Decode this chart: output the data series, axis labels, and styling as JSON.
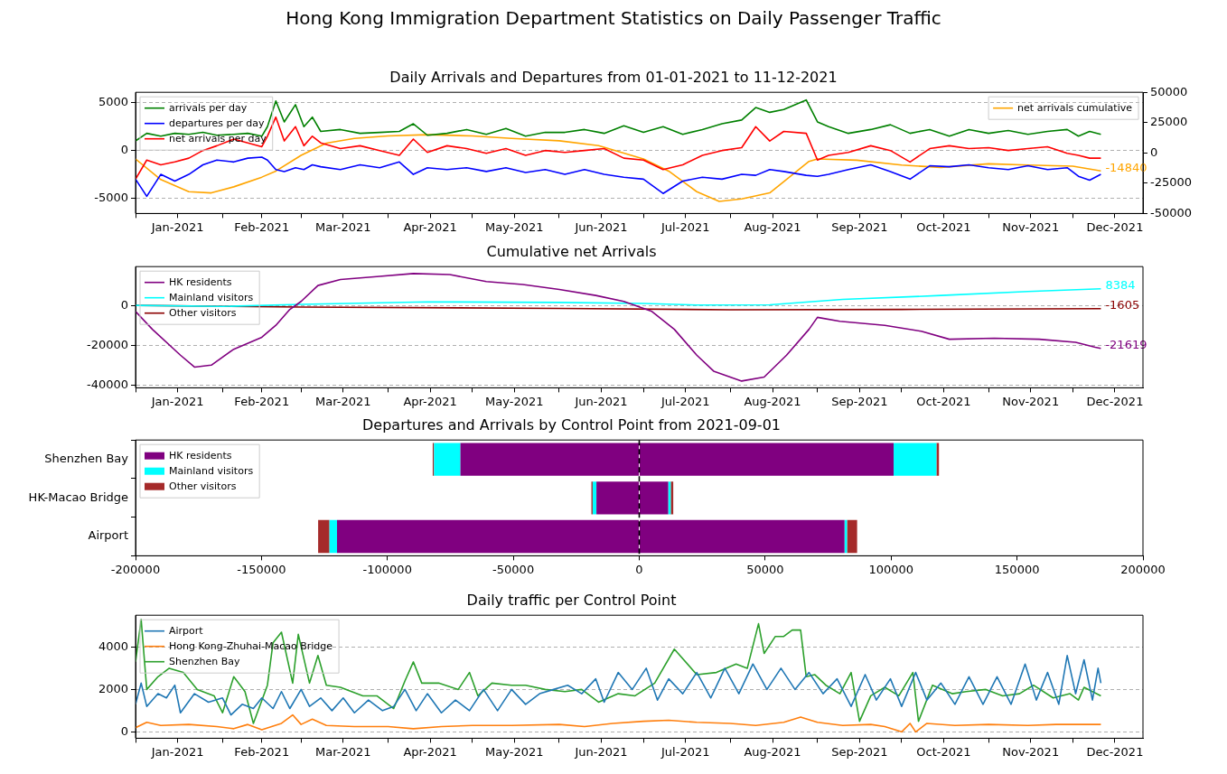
{
  "chart_data": [
    {
      "type": "line",
      "title": "Hong Kong Immigration Department Statistics on Daily Passenger Traffic",
      "subtitle": "Daily Arrivals and Departures from 01-01-2021 to 11-12-2021",
      "x": [
        "2021-01-01",
        "2021-01-05",
        "2021-01-10",
        "2021-01-15",
        "2021-01-20",
        "2021-01-25",
        "2021-01-30",
        "2021-02-05",
        "2021-02-10",
        "2021-02-15",
        "2021-02-17",
        "2021-02-20",
        "2021-02-23",
        "2021-02-27",
        "2021-03-02",
        "2021-03-05",
        "2021-03-08",
        "2021-03-15",
        "2021-03-22",
        "2021-03-29",
        "2021-04-05",
        "2021-04-10",
        "2021-04-15",
        "2021-04-22",
        "2021-04-29",
        "2021-05-06",
        "2021-05-13",
        "2021-05-20",
        "2021-05-27",
        "2021-06-03",
        "2021-06-10",
        "2021-06-17",
        "2021-06-24",
        "2021-07-01",
        "2021-07-08",
        "2021-07-15",
        "2021-07-22",
        "2021-07-29",
        "2021-08-05",
        "2021-08-10",
        "2021-08-15",
        "2021-08-20",
        "2021-08-28",
        "2021-09-01",
        "2021-09-05",
        "2021-09-12",
        "2021-09-20",
        "2021-09-27",
        "2021-10-04",
        "2021-10-11",
        "2021-10-18",
        "2021-10-25",
        "2021-11-01",
        "2021-11-08",
        "2021-11-15",
        "2021-11-22",
        "2021-11-29",
        "2021-12-03",
        "2021-12-07",
        "2021-12-11"
      ],
      "series": [
        {
          "name": "arrivals per day",
          "color": "#008000",
          "values": [
            1000,
            1800,
            1500,
            1800,
            1700,
            1900,
            1600,
            1700,
            1800,
            1500,
            2500,
            5200,
            3000,
            4800,
            2500,
            3500,
            2000,
            2200,
            1800,
            1900,
            2000,
            2800,
            1600,
            1800,
            2200,
            1700,
            2300,
            1500,
            1900,
            1900,
            2200,
            1800,
            2600,
            1900,
            2500,
            1700,
            2200,
            2800,
            3200,
            4500,
            4000,
            4300,
            5300,
            3000,
            2500,
            1800,
            2200,
            2700,
            1800,
            2200,
            1500,
            2200,
            1800,
            2100,
            1700,
            2000,
            2200,
            1500,
            2000,
            1700
          ]
        },
        {
          "name": "departures per day",
          "color": "#0000ff",
          "values": [
            -3000,
            -4800,
            -2500,
            -3200,
            -2500,
            -1500,
            -1000,
            -1200,
            -800,
            -700,
            -1000,
            -2000,
            -2200,
            -1800,
            -2000,
            -1500,
            -1700,
            -2000,
            -1500,
            -1800,
            -1200,
            -2500,
            -1800,
            -2000,
            -1800,
            -2200,
            -1800,
            -2300,
            -2000,
            -2500,
            -2000,
            -2500,
            -2800,
            -3000,
            -4500,
            -3200,
            -2800,
            -3000,
            -2500,
            -2600,
            -2000,
            -2200,
            -2600,
            -2700,
            -2500,
            -2000,
            -1500,
            -2200,
            -3000,
            -1600,
            -1700,
            -1500,
            -1800,
            -2000,
            -1600,
            -2000,
            -1800,
            -2700,
            -3100,
            -2500
          ]
        },
        {
          "name": "net arrivals per day",
          "color": "#ff0000",
          "values": [
            -3000,
            -1000,
            -1500,
            -1200,
            -800,
            0,
            500,
            1200,
            800,
            400,
            1500,
            3500,
            1000,
            2500,
            500,
            1500,
            800,
            200,
            500,
            0,
            -500,
            1200,
            -200,
            500,
            200,
            -300,
            200,
            -500,
            0,
            -200,
            0,
            200,
            -800,
            -1000,
            -2000,
            -1500,
            -500,
            0,
            300,
            2500,
            1000,
            2000,
            1800,
            -1000,
            -500,
            -200,
            500,
            0,
            -1200,
            200,
            500,
            200,
            300,
            0,
            200,
            400,
            -300,
            -500,
            -800,
            -800
          ]
        },
        {
          "name": "net arrivals cumulative",
          "color": "#ffa500",
          "axis": "y2",
          "x": [
            "2021-01-01",
            "2021-01-10",
            "2021-01-20",
            "2021-01-28",
            "2021-02-05",
            "2021-02-15",
            "2021-02-20",
            "2021-03-01",
            "2021-03-10",
            "2021-03-20",
            "2021-04-01",
            "2021-04-15",
            "2021-05-01",
            "2021-05-15",
            "2021-06-01",
            "2021-06-15",
            "2021-07-01",
            "2021-07-10",
            "2021-07-20",
            "2021-07-28",
            "2021-08-05",
            "2021-08-15",
            "2021-08-22",
            "2021-08-29",
            "2021-09-01",
            "2021-09-15",
            "2021-10-01",
            "2021-10-15",
            "2021-11-01",
            "2021-11-15",
            "2021-12-01",
            "2021-12-11"
          ],
          "values": [
            -5000,
            -22000,
            -32000,
            -33000,
            -28000,
            -20000,
            -15000,
            -2000,
            8000,
            12000,
            14000,
            15000,
            14000,
            12000,
            10000,
            6000,
            -5000,
            -15000,
            -32000,
            -40000,
            -38000,
            -33000,
            -20000,
            -7000,
            -5000,
            -6000,
            -10000,
            -12000,
            -9000,
            -10000,
            -11000,
            -14840
          ],
          "value_labels": [
            null,
            null,
            null,
            null,
            null,
            null,
            null,
            null,
            null,
            null,
            null,
            null,
            null,
            null,
            null,
            null,
            null,
            null,
            null,
            null,
            null,
            null,
            null,
            null,
            null,
            null,
            null,
            null,
            null,
            null,
            null,
            "-14840"
          ]
        }
      ],
      "xlim": [
        "2021-01-01",
        "2021-12-26"
      ],
      "xticks": [
        {
          "value": "2021-01-01",
          "label": null
        },
        {
          "value": "2021-01-16",
          "label": "Jan-2021"
        },
        {
          "value": "2021-02-01",
          "label": null
        },
        {
          "value": "2021-02-15",
          "label": "Feb-2021"
        },
        {
          "value": "2021-03-01",
          "label": null
        },
        {
          "value": "2021-03-16",
          "label": "Mar-2021"
        },
        {
          "value": "2021-04-01",
          "label": null
        },
        {
          "value": "2021-04-16",
          "label": "Apr-2021"
        },
        {
          "value": "2021-05-01",
          "label": null
        },
        {
          "value": "2021-05-16",
          "label": "May-2021"
        },
        {
          "value": "2021-06-01",
          "label": null
        },
        {
          "value": "2021-06-16",
          "label": "Jun-2021"
        },
        {
          "value": "2021-07-01",
          "label": null
        },
        {
          "value": "2021-07-16",
          "label": "Jul-2021"
        },
        {
          "value": "2021-08-01",
          "label": null
        },
        {
          "value": "2021-08-16",
          "label": "Aug-2021"
        },
        {
          "value": "2021-09-01",
          "label": null
        },
        {
          "value": "2021-09-16",
          "label": "Sep-2021"
        },
        {
          "value": "2021-10-01",
          "label": null
        },
        {
          "value": "2021-10-16",
          "label": "Oct-2021"
        },
        {
          "value": "2021-11-01",
          "label": null
        },
        {
          "value": "2021-11-16",
          "label": "Nov-2021"
        },
        {
          "value": "2021-12-01",
          "label": null
        },
        {
          "value": "2021-12-16",
          "label": "Dec-2021"
        }
      ],
      "ylim": [
        -6600,
        6100
      ],
      "yticks": [
        -5000,
        0,
        5000
      ],
      "y2lim": [
        -50000,
        50000
      ],
      "y2ticks": [
        -50000,
        -25000,
        0,
        25000,
        50000
      ],
      "grid": "y",
      "legend": "top left"
    },
    {
      "type": "line",
      "title": "Cumulative net Arrivals",
      "series": [
        {
          "name": "HK residents",
          "color": "#800080",
          "x": [
            "2021-01-01",
            "2021-01-07",
            "2021-01-17",
            "2021-01-22",
            "2021-01-28",
            "2021-02-05",
            "2021-02-15",
            "2021-02-20",
            "2021-02-25",
            "2021-03-01",
            "2021-03-07",
            "2021-03-15",
            "2021-03-28",
            "2021-04-10",
            "2021-04-23",
            "2021-05-06",
            "2021-05-19",
            "2021-06-01",
            "2021-06-14",
            "2021-06-24",
            "2021-07-04",
            "2021-07-12",
            "2021-07-20",
            "2021-07-26",
            "2021-08-05",
            "2021-08-13",
            "2021-08-21",
            "2021-08-29",
            "2021-09-01",
            "2021-09-09",
            "2021-09-25",
            "2021-10-08",
            "2021-10-18",
            "2021-11-03",
            "2021-11-19",
            "2021-12-02",
            "2021-12-09",
            "2021-12-11"
          ],
          "values": [
            -3000,
            -12000,
            -25000,
            -31000,
            -30000,
            -22000,
            -16000,
            -10000,
            -2000,
            2000,
            10000,
            13000,
            14500,
            16000,
            15500,
            12000,
            10500,
            8000,
            5000,
            2000,
            -3000,
            -12000,
            -25000,
            -33000,
            -38000,
            -36000,
            -25000,
            -12000,
            -6000,
            -8000,
            -10000,
            -13000,
            -17000,
            -16500,
            -17000,
            -18500,
            -21000,
            -21619
          ],
          "value_labels": [
            null,
            null,
            null,
            null,
            null,
            null,
            null,
            null,
            null,
            null,
            null,
            null,
            null,
            null,
            null,
            null,
            null,
            null,
            null,
            null,
            null,
            null,
            null,
            null,
            null,
            null,
            null,
            null,
            null,
            null,
            null,
            null,
            null,
            null,
            null,
            null,
            null,
            "-21619"
          ]
        },
        {
          "name": "Mainland visitors",
          "color": "#00ffff",
          "x": [
            "2021-01-01",
            "2021-02-01",
            "2021-03-01",
            "2021-04-15",
            "2021-06-01",
            "2021-07-01",
            "2021-07-20",
            "2021-08-15",
            "2021-09-10",
            "2021-10-15",
            "2021-11-15",
            "2021-12-11"
          ],
          "values": [
            0,
            -500,
            500,
            1800,
            1500,
            1000,
            200,
            300,
            3000,
            5000,
            7000,
            8384
          ],
          "value_labels": [
            null,
            null,
            null,
            null,
            null,
            null,
            null,
            null,
            null,
            null,
            null,
            "8384"
          ]
        },
        {
          "name": "Other visitors",
          "color": "#8b0000",
          "x": [
            "2021-01-01",
            "2021-03-01",
            "2021-06-01",
            "2021-08-01",
            "2021-10-01",
            "2021-12-11"
          ],
          "values": [
            0,
            -800,
            -1500,
            -2200,
            -2000,
            -1605
          ],
          "value_labels": [
            null,
            null,
            null,
            null,
            null,
            "-1605"
          ]
        }
      ],
      "xlim": [
        "2021-01-01",
        "2021-12-26"
      ],
      "xticks": [
        {
          "value": "2021-01-01",
          "label": null
        },
        {
          "value": "2021-01-16",
          "label": "Jan-2021"
        },
        {
          "value": "2021-02-01",
          "label": null
        },
        {
          "value": "2021-02-15",
          "label": "Feb-2021"
        },
        {
          "value": "2021-03-01",
          "label": null
        },
        {
          "value": "2021-03-16",
          "label": "Mar-2021"
        },
        {
          "value": "2021-04-01",
          "label": null
        },
        {
          "value": "2021-04-16",
          "label": "Apr-2021"
        },
        {
          "value": "2021-05-01",
          "label": null
        },
        {
          "value": "2021-05-16",
          "label": "May-2021"
        },
        {
          "value": "2021-06-01",
          "label": null
        },
        {
          "value": "2021-06-16",
          "label": "Jun-2021"
        },
        {
          "value": "2021-07-01",
          "label": null
        },
        {
          "value": "2021-07-16",
          "label": "Jul-2021"
        },
        {
          "value": "2021-08-01",
          "label": null
        },
        {
          "value": "2021-08-16",
          "label": "Aug-2021"
        },
        {
          "value": "2021-09-01",
          "label": null
        },
        {
          "value": "2021-09-16",
          "label": "Sep-2021"
        },
        {
          "value": "2021-10-01",
          "label": null
        },
        {
          "value": "2021-10-16",
          "label": "Oct-2021"
        },
        {
          "value": "2021-11-01",
          "label": null
        },
        {
          "value": "2021-11-16",
          "label": "Nov-2021"
        },
        {
          "value": "2021-12-01",
          "label": null
        },
        {
          "value": "2021-12-16",
          "label": "Dec-2021"
        }
      ],
      "ylim": [
        -41400,
        19500
      ],
      "yticks": [
        -40000,
        -20000,
        0
      ],
      "grid": "y",
      "legend": "top left"
    },
    {
      "type": "bar",
      "title": "Departures and Arrivals by Control Point from 2021-09-01",
      "orientation": "horizontal",
      "stacked": true,
      "categories": [
        "Shenzhen Bay",
        "HK-Macao Bridge",
        "Airport"
      ],
      "series": [
        {
          "name": "HK residents",
          "color": "#800080",
          "values": [
            101000,
            11500,
            81500
          ]
        },
        {
          "name": "Mainland visitors",
          "color": "#00ffff",
          "values": [
            17000,
            1000,
            1000
          ]
        },
        {
          "name": "Other visitors",
          "color": "#a52a2a",
          "values": [
            1000,
            1000,
            4000
          ]
        },
        {
          "color": "#800080",
          "values": [
            -71000,
            -17000,
            -120000
          ]
        },
        {
          "color": "#00ffff",
          "values": [
            -10500,
            -1500,
            -3000
          ]
        },
        {
          "color": "#a52a2a",
          "values": [
            -500,
            -500,
            -4500
          ]
        }
      ],
      "xlim": [
        -200000,
        200000
      ],
      "xticks": [
        -200000,
        -150000,
        -100000,
        -50000,
        0,
        50000,
        100000,
        150000,
        200000
      ],
      "ref_lines": [
        {
          "axis": "x",
          "value": 0,
          "color": "#000000",
          "line_style": "dashed"
        }
      ],
      "legend": "top left"
    },
    {
      "type": "line",
      "title": "Daily traffic per Control Point",
      "series": [
        {
          "name": "Airport",
          "color": "#1f77b4",
          "x": [
            "2021-01-01",
            "2021-01-03",
            "2021-01-05",
            "2021-01-09",
            "2021-01-12",
            "2021-01-15",
            "2021-01-17",
            "2021-01-22",
            "2021-01-27",
            "2021-02-01",
            "2021-02-04",
            "2021-02-08",
            "2021-02-12",
            "2021-02-15",
            "2021-02-19",
            "2021-02-22",
            "2021-02-25",
            "2021-03-01",
            "2021-03-04",
            "2021-03-08",
            "2021-03-12",
            "2021-03-16",
            "2021-03-20",
            "2021-03-25",
            "2021-03-30",
            "2021-04-03",
            "2021-04-07",
            "2021-04-11",
            "2021-04-15",
            "2021-04-20",
            "2021-04-25",
            "2021-04-30",
            "2021-05-05",
            "2021-05-10",
            "2021-05-15",
            "2021-05-20",
            "2021-05-25",
            "2021-05-30",
            "2021-06-04",
            "2021-06-09",
            "2021-06-14",
            "2021-06-17",
            "2021-06-22",
            "2021-06-27",
            "2021-07-02",
            "2021-07-06",
            "2021-07-10",
            "2021-07-15",
            "2021-07-20",
            "2021-07-25",
            "2021-07-30",
            "2021-08-04",
            "2021-08-09",
            "2021-08-14",
            "2021-08-19",
            "2021-08-24",
            "2021-08-29",
            "2021-09-03",
            "2021-09-08",
            "2021-09-13",
            "2021-09-18",
            "2021-09-22",
            "2021-09-27",
            "2021-10-01",
            "2021-10-06",
            "2021-10-10",
            "2021-10-15",
            "2021-10-20",
            "2021-10-25",
            "2021-10-30",
            "2021-11-04",
            "2021-11-09",
            "2021-11-14",
            "2021-11-18",
            "2021-11-22",
            "2021-11-26",
            "2021-11-29",
            "2021-12-02",
            "2021-12-05",
            "2021-12-08",
            "2021-12-10",
            "2021-12-11"
          ],
          "values": [
            1300,
            2300,
            1200,
            1800,
            1600,
            2200,
            900,
            1800,
            1400,
            1600,
            800,
            1300,
            1100,
            1600,
            1100,
            1900,
            1100,
            2000,
            1200,
            1600,
            1000,
            1600,
            900,
            1500,
            1000,
            1200,
            2000,
            1000,
            1800,
            900,
            1500,
            1000,
            2000,
            1000,
            2000,
            1300,
            1800,
            2000,
            2200,
            1800,
            2500,
            1400,
            2800,
            2000,
            3000,
            1500,
            2500,
            1800,
            2800,
            1600,
            3000,
            1800,
            3200,
            2000,
            3000,
            2000,
            2800,
            1800,
            2500,
            1200,
            2700,
            1500,
            2500,
            1200,
            2800,
            1500,
            2300,
            1300,
            2600,
            1300,
            2600,
            1300,
            3200,
            1500,
            2800,
            1300,
            3600,
            1800,
            3400,
            1500,
            3000,
            2300
          ]
        },
        {
          "name": "Hong Kong-Zhuhai-Macao Bridge",
          "color": "#ff7f0e",
          "x": [
            "2021-01-01",
            "2021-01-05",
            "2021-01-10",
            "2021-01-20",
            "2021-01-30",
            "2021-02-05",
            "2021-02-10",
            "2021-02-15",
            "2021-02-22",
            "2021-02-26",
            "2021-03-01",
            "2021-03-05",
            "2021-03-10",
            "2021-03-20",
            "2021-04-01",
            "2021-04-10",
            "2021-04-20",
            "2021-05-01",
            "2021-05-15",
            "2021-06-01",
            "2021-06-10",
            "2021-06-20",
            "2021-07-01",
            "2021-07-10",
            "2021-07-20",
            "2021-08-01",
            "2021-08-10",
            "2021-08-20",
            "2021-08-26",
            "2021-09-01",
            "2021-09-10",
            "2021-09-20",
            "2021-09-25",
            "2021-10-01",
            "2021-10-04",
            "2021-10-06",
            "2021-10-10",
            "2021-10-20",
            "2021-11-01",
            "2021-11-15",
            "2021-11-25",
            "2021-12-11"
          ],
          "values": [
            200,
            450,
            300,
            350,
            250,
            150,
            350,
            100,
            400,
            800,
            350,
            600,
            300,
            250,
            250,
            150,
            250,
            300,
            300,
            350,
            250,
            400,
            500,
            550,
            450,
            400,
            300,
            450,
            700,
            450,
            300,
            350,
            250,
            0,
            400,
            0,
            400,
            300,
            350,
            300,
            350,
            350
          ]
        },
        {
          "name": "Shenzhen Bay",
          "color": "#2ca02c",
          "x": [
            "2021-01-01",
            "2021-01-03",
            "2021-01-05",
            "2021-01-09",
            "2021-01-13",
            "2021-01-18",
            "2021-01-23",
            "2021-01-29",
            "2021-02-01",
            "2021-02-05",
            "2021-02-09",
            "2021-02-12",
            "2021-02-17",
            "2021-02-19",
            "2021-02-22",
            "2021-02-26",
            "2021-02-28",
            "2021-03-04",
            "2021-03-07",
            "2021-03-10",
            "2021-03-15",
            "2021-03-23",
            "2021-03-28",
            "2021-04-03",
            "2021-04-07",
            "2021-04-10",
            "2021-04-13",
            "2021-04-19",
            "2021-04-26",
            "2021-04-30",
            "2021-05-03",
            "2021-05-08",
            "2021-05-15",
            "2021-05-20",
            "2021-05-27",
            "2021-06-03",
            "2021-06-09",
            "2021-06-15",
            "2021-06-22",
            "2021-06-28",
            "2021-07-05",
            "2021-07-12",
            "2021-07-20",
            "2021-07-27",
            "2021-08-03",
            "2021-08-07",
            "2021-08-11",
            "2021-08-13",
            "2021-08-17",
            "2021-08-20",
            "2021-08-23",
            "2021-08-26",
            "2021-08-28",
            "2021-08-31",
            "2021-09-04",
            "2021-09-09",
            "2021-09-13",
            "2021-09-16",
            "2021-09-20",
            "2021-09-25",
            "2021-09-30",
            "2021-10-05",
            "2021-10-07",
            "2021-10-12",
            "2021-10-19",
            "2021-10-24",
            "2021-10-31",
            "2021-11-06",
            "2021-11-12",
            "2021-11-17",
            "2021-11-24",
            "2021-11-30",
            "2021-12-03",
            "2021-12-05",
            "2021-12-11"
          ],
          "values": [
            3300,
            5300,
            2000,
            2600,
            3000,
            2800,
            2000,
            1700,
            900,
            2600,
            1900,
            400,
            2200,
            4200,
            4700,
            2300,
            4600,
            2300,
            3600,
            2200,
            2100,
            1700,
            1700,
            1100,
            2400,
            3300,
            2300,
            2300,
            2000,
            2800,
            1700,
            2300,
            2200,
            2200,
            2000,
            1900,
            2000,
            1400,
            1800,
            1700,
            2300,
            3900,
            2700,
            2800,
            3200,
            3000,
            5100,
            3700,
            4500,
            4500,
            4800,
            4800,
            2600,
            2700,
            2200,
            1800,
            2800,
            500,
            1700,
            2100,
            1700,
            2800,
            500,
            2200,
            1800,
            1900,
            2000,
            1700,
            1800,
            2200,
            1600,
            1800,
            1500,
            2100,
            1700
          ]
        }
      ],
      "xlim": [
        "2021-01-01",
        "2021-12-26"
      ],
      "xticks": [
        {
          "value": "2021-01-01",
          "label": null
        },
        {
          "value": "2021-01-16",
          "label": "Jan-2021"
        },
        {
          "value": "2021-02-01",
          "label": null
        },
        {
          "value": "2021-02-15",
          "label": "Feb-2021"
        },
        {
          "value": "2021-03-01",
          "label": null
        },
        {
          "value": "2021-03-16",
          "label": "Mar-2021"
        },
        {
          "value": "2021-04-01",
          "label": null
        },
        {
          "value": "2021-04-16",
          "label": "Apr-2021"
        },
        {
          "value": "2021-05-01",
          "label": null
        },
        {
          "value": "2021-05-16",
          "label": "May-2021"
        },
        {
          "value": "2021-06-01",
          "label": null
        },
        {
          "value": "2021-06-16",
          "label": "Jun-2021"
        },
        {
          "value": "2021-07-01",
          "label": null
        },
        {
          "value": "2021-07-16",
          "label": "Jul-2021"
        },
        {
          "value": "2021-08-01",
          "label": null
        },
        {
          "value": "2021-08-16",
          "label": "Aug-2021"
        },
        {
          "value": "2021-09-01",
          "label": null
        },
        {
          "value": "2021-09-16",
          "label": "Sep-2021"
        },
        {
          "value": "2021-10-01",
          "label": null
        },
        {
          "value": "2021-10-16",
          "label": "Oct-2021"
        },
        {
          "value": "2021-11-01",
          "label": null
        },
        {
          "value": "2021-11-16",
          "label": "Nov-2021"
        },
        {
          "value": "2021-12-01",
          "label": null
        },
        {
          "value": "2021-12-16",
          "label": "Dec-2021"
        }
      ],
      "ylim": [
        -300,
        5500
      ],
      "yticks": [
        0,
        2000,
        4000
      ],
      "grid": "y",
      "legend": "top left"
    }
  ]
}
